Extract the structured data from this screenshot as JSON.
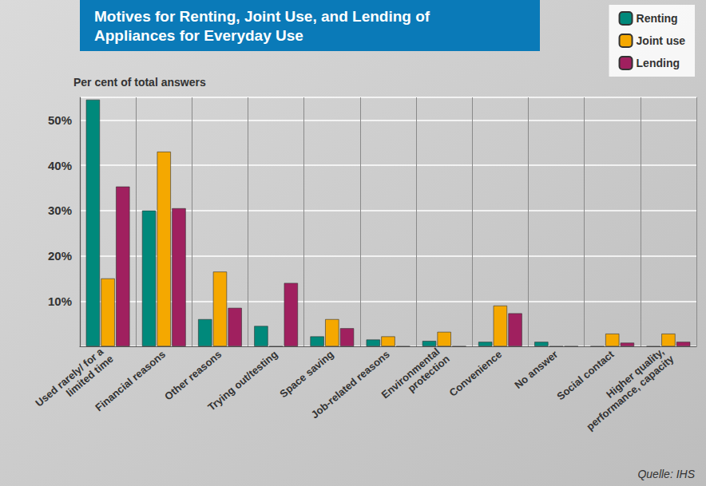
{
  "chart_data": {
    "type": "bar",
    "title": "Motives for Renting, Joint Use, and Lending of Appliances for Everyday Use",
    "ylabel": "Per cent of total answers",
    "source": "Quelle: IHS",
    "categories": [
      "Used rarely/ for a limited time",
      "Financial reasons",
      "Other reasons",
      "Trying out/testing",
      "Space saving",
      "Job-related reasons",
      "Environmental protection",
      "Convenience",
      "No answer",
      "Social contact",
      "Higher quality, performance, capacity"
    ],
    "series": [
      {
        "name": "Renting",
        "color": "#00897b",
        "values": [
          54.5,
          30,
          6,
          4.5,
          2.2,
          1.5,
          1.2,
          1,
          1,
          0,
          0
        ]
      },
      {
        "name": "Joint use",
        "color": "#f5a800",
        "values": [
          15,
          43,
          16.5,
          0,
          6,
          2.2,
          3.2,
          9,
          0,
          2.8,
          2.8
        ]
      },
      {
        "name": "Lending",
        "color": "#a0205f",
        "values": [
          35.3,
          30.5,
          8.5,
          14,
          4,
          0,
          0,
          7.3,
          0,
          0.8,
          1
        ]
      }
    ],
    "ylim": [
      0,
      55
    ],
    "yticks": [
      {
        "value": 10,
        "label": "10%"
      },
      {
        "value": 20,
        "label": "20%"
      },
      {
        "value": 30,
        "label": "30%"
      },
      {
        "value": 40,
        "label": "40%"
      },
      {
        "value": 50,
        "label": "50%"
      }
    ],
    "grid": true,
    "legend": "top-right"
  }
}
